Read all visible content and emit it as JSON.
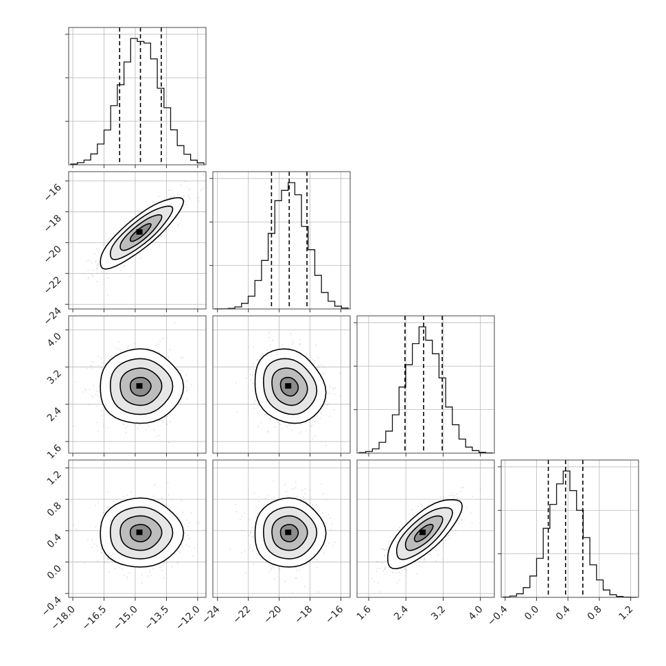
{
  "chart_data": {
    "type": "corner",
    "grid": true,
    "parameters": [
      {
        "mean": -14.75,
        "sd": 1.0,
        "range": [
          -18.2,
          -11.6
        ],
        "ticks": [
          "−18.0",
          "−16.5",
          "−15.0",
          "−13.5",
          "−12.0"
        ],
        "tick_values": [
          -18.0,
          -16.5,
          -15.0,
          -13.5,
          -12.0
        ],
        "quantiles": [
          -15.75,
          -14.75,
          -13.75
        ]
      },
      {
        "mean": -19.35,
        "sd": 1.15,
        "range": [
          -24.3,
          -15.4
        ],
        "ticks": [
          "−24",
          "−22",
          "−20",
          "−18",
          "−16"
        ],
        "tick_values": [
          -24,
          -22,
          -20,
          -18,
          -16
        ],
        "quantiles": [
          -20.5,
          -19.35,
          -18.2
        ]
      },
      {
        "mean": 2.78,
        "sd": 0.4,
        "range": [
          1.35,
          4.3
        ],
        "ticks": [
          "1.6",
          "2.4",
          "3.2",
          "4.0"
        ],
        "tick_values": [
          1.6,
          2.4,
          3.2,
          4.0
        ],
        "quantiles": [
          2.38,
          2.78,
          3.18
        ]
      },
      {
        "mean": 0.37,
        "sd": 0.22,
        "range": [
          -0.45,
          1.3
        ],
        "ticks": [
          "−0.4",
          "0.0",
          "0.4",
          "0.8",
          "1.2"
        ],
        "tick_values": [
          -0.4,
          0.0,
          0.4,
          0.8,
          1.2
        ],
        "quantiles": [
          0.15,
          0.37,
          0.59
        ]
      }
    ],
    "correlations": [
      {
        "i": 1,
        "j": 0,
        "rho": 0.85
      },
      {
        "i": 2,
        "j": 0,
        "rho": 0.0
      },
      {
        "i": 2,
        "j": 1,
        "rho": -0.15
      },
      {
        "i": 3,
        "j": 0,
        "rho": 0.0
      },
      {
        "i": 3,
        "j": 1,
        "rho": 0.0
      },
      {
        "i": 3,
        "j": 2,
        "rho": 0.75
      }
    ],
    "contour_levels_sigma": [
      0.5,
      1.0,
      1.5,
      2.0
    ]
  }
}
